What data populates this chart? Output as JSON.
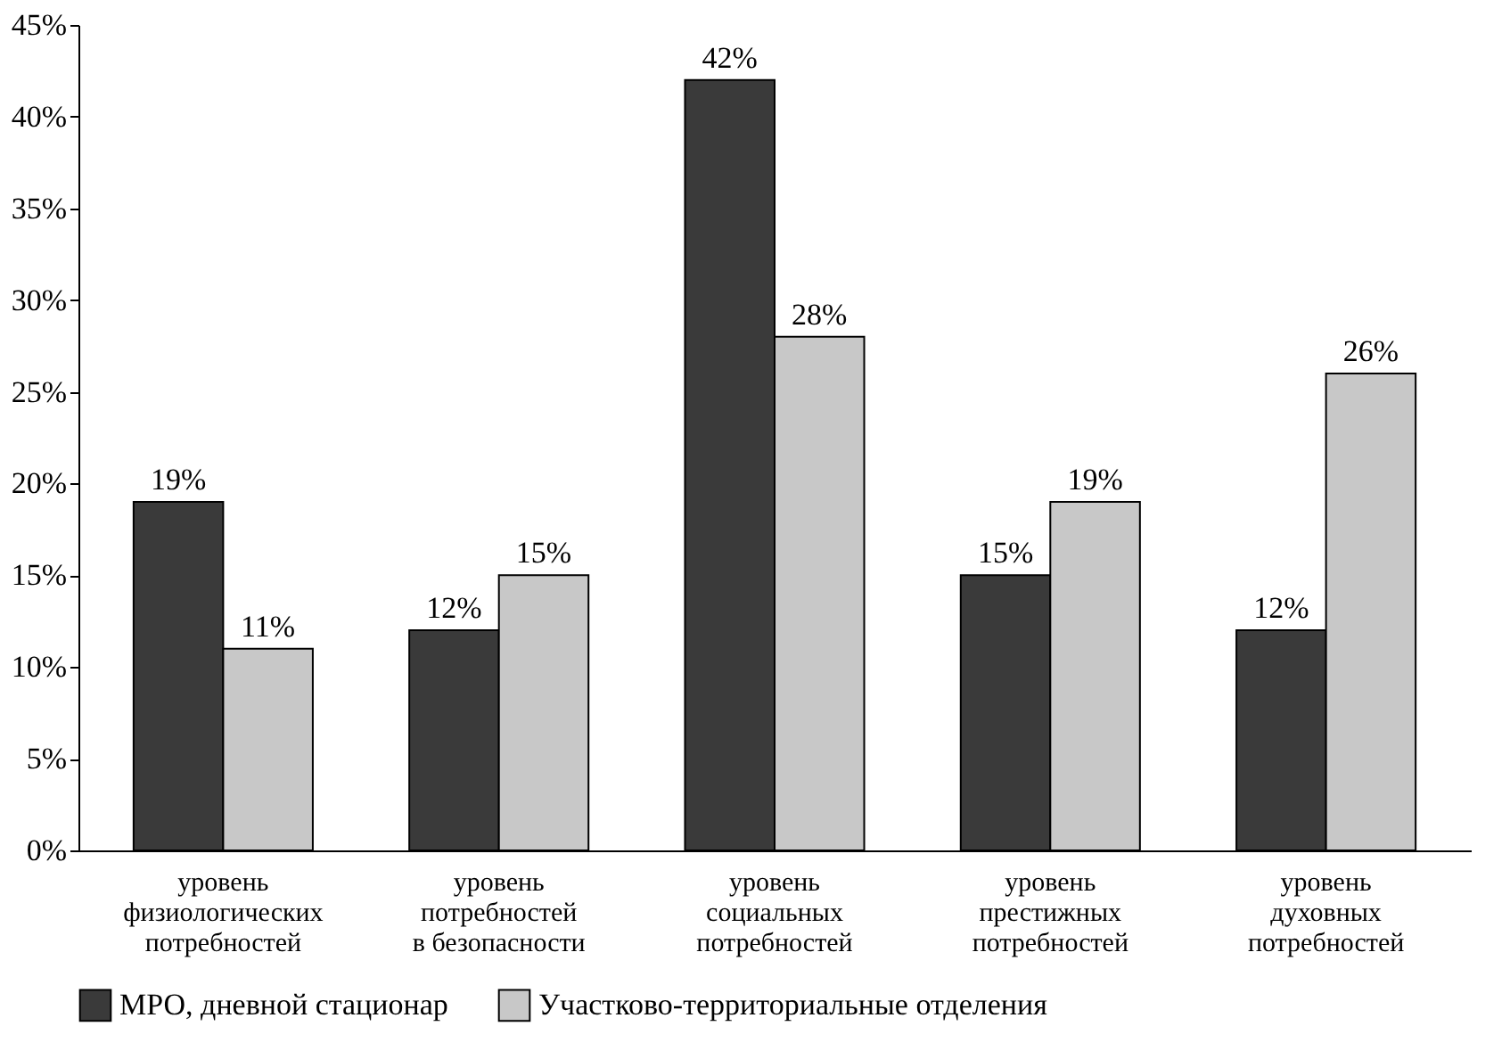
{
  "chart_data": {
    "type": "bar",
    "categories": [
      "уровень\nфизиологических\nпотребностей",
      "уровень\nпотребностей\nв безопасности",
      "уровень\nсоциальных\nпотребностей",
      "уровень\nпрестижных\nпотребностей",
      "уровень\nдуховных\nпотребностей"
    ],
    "series": [
      {
        "name": "МРО, дневной стационар",
        "color": "#3a3a3a",
        "values": [
          19,
          12,
          42,
          15,
          12
        ],
        "value_labels": [
          "19%",
          "12%",
          "42%",
          "15%",
          "12%"
        ]
      },
      {
        "name": "Участково-территориальные отделения",
        "color": "#c8c8c8",
        "values": [
          11,
          15,
          28,
          19,
          26
        ],
        "value_labels": [
          "11%",
          "15%",
          "28%",
          "19%",
          "26%"
        ]
      }
    ],
    "ylim": [
      0,
      45
    ],
    "yticks": [
      {
        "value": 0,
        "label": "0%"
      },
      {
        "value": 5,
        "label": "5%"
      },
      {
        "value": 10,
        "label": "10%"
      },
      {
        "value": 15,
        "label": "15%"
      },
      {
        "value": 20,
        "label": "20%"
      },
      {
        "value": 25,
        "label": "25%"
      },
      {
        "value": 30,
        "label": "30%"
      },
      {
        "value": 35,
        "label": "35%"
      },
      {
        "value": 40,
        "label": "40%"
      },
      {
        "value": 45,
        "label": "45%"
      }
    ],
    "grid": false,
    "legend": "bottom"
  }
}
